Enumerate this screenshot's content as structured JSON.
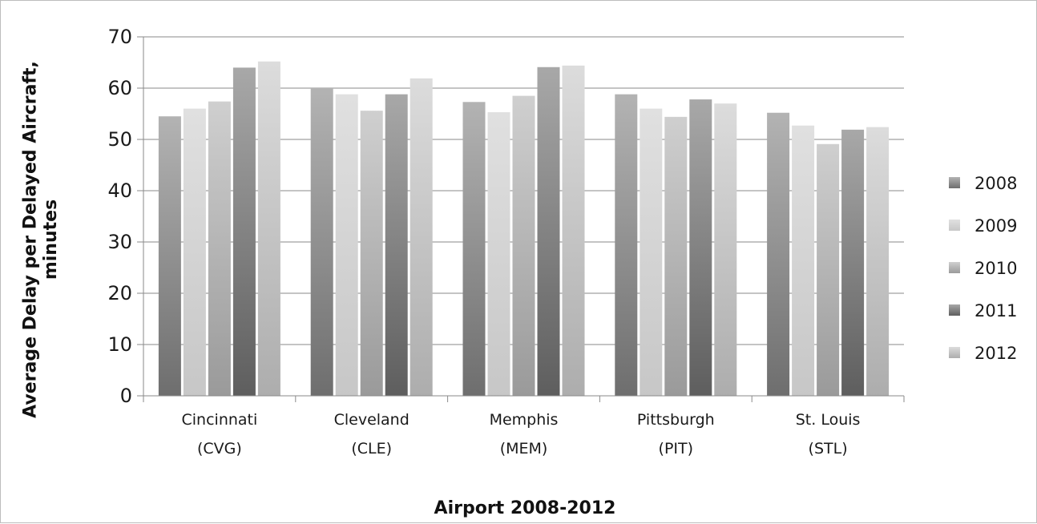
{
  "chart_data": {
    "type": "bar",
    "title": "",
    "xlabel": "Airport 2008-2012",
    "ylabel": "Average Delay per Delayed Aircraft, minutes",
    "ylim": [
      0,
      70
    ],
    "yticks": [
      "0",
      "10",
      "20",
      "30",
      "40",
      "50",
      "60",
      "70"
    ],
    "grid": true,
    "legend_position": "right",
    "categories": [
      [
        "Cincinnati",
        "(CVG)"
      ],
      [
        "Cleveland",
        "(CLE)"
      ],
      [
        "Memphis",
        "(MEM)"
      ],
      [
        "Pittsburgh",
        "(PIT)"
      ],
      [
        "St. Louis",
        "(STL)"
      ]
    ],
    "series": [
      {
        "name": "2008",
        "color_top": "#b3b3b3",
        "color_bottom": "#6e6e6e",
        "values": [
          54.5,
          60.0,
          57.3,
          58.8,
          55.2
        ]
      },
      {
        "name": "2009",
        "color_top": "#e0e0e0",
        "color_bottom": "#c7c7c7",
        "values": [
          56.0,
          58.8,
          55.3,
          56.0,
          52.7
        ]
      },
      {
        "name": "2010",
        "color_top": "#cfcfcf",
        "color_bottom": "#9a9a9a",
        "values": [
          57.4,
          55.6,
          58.5,
          54.4,
          49.1
        ]
      },
      {
        "name": "2011",
        "color_top": "#a8a8a8",
        "color_bottom": "#5e5e5e",
        "values": [
          64.0,
          58.8,
          64.1,
          57.8,
          51.9
        ]
      },
      {
        "name": "2012",
        "color_top": "#dcdcdc",
        "color_bottom": "#adadad",
        "values": [
          65.2,
          61.9,
          64.4,
          57.0,
          52.4
        ]
      }
    ]
  }
}
